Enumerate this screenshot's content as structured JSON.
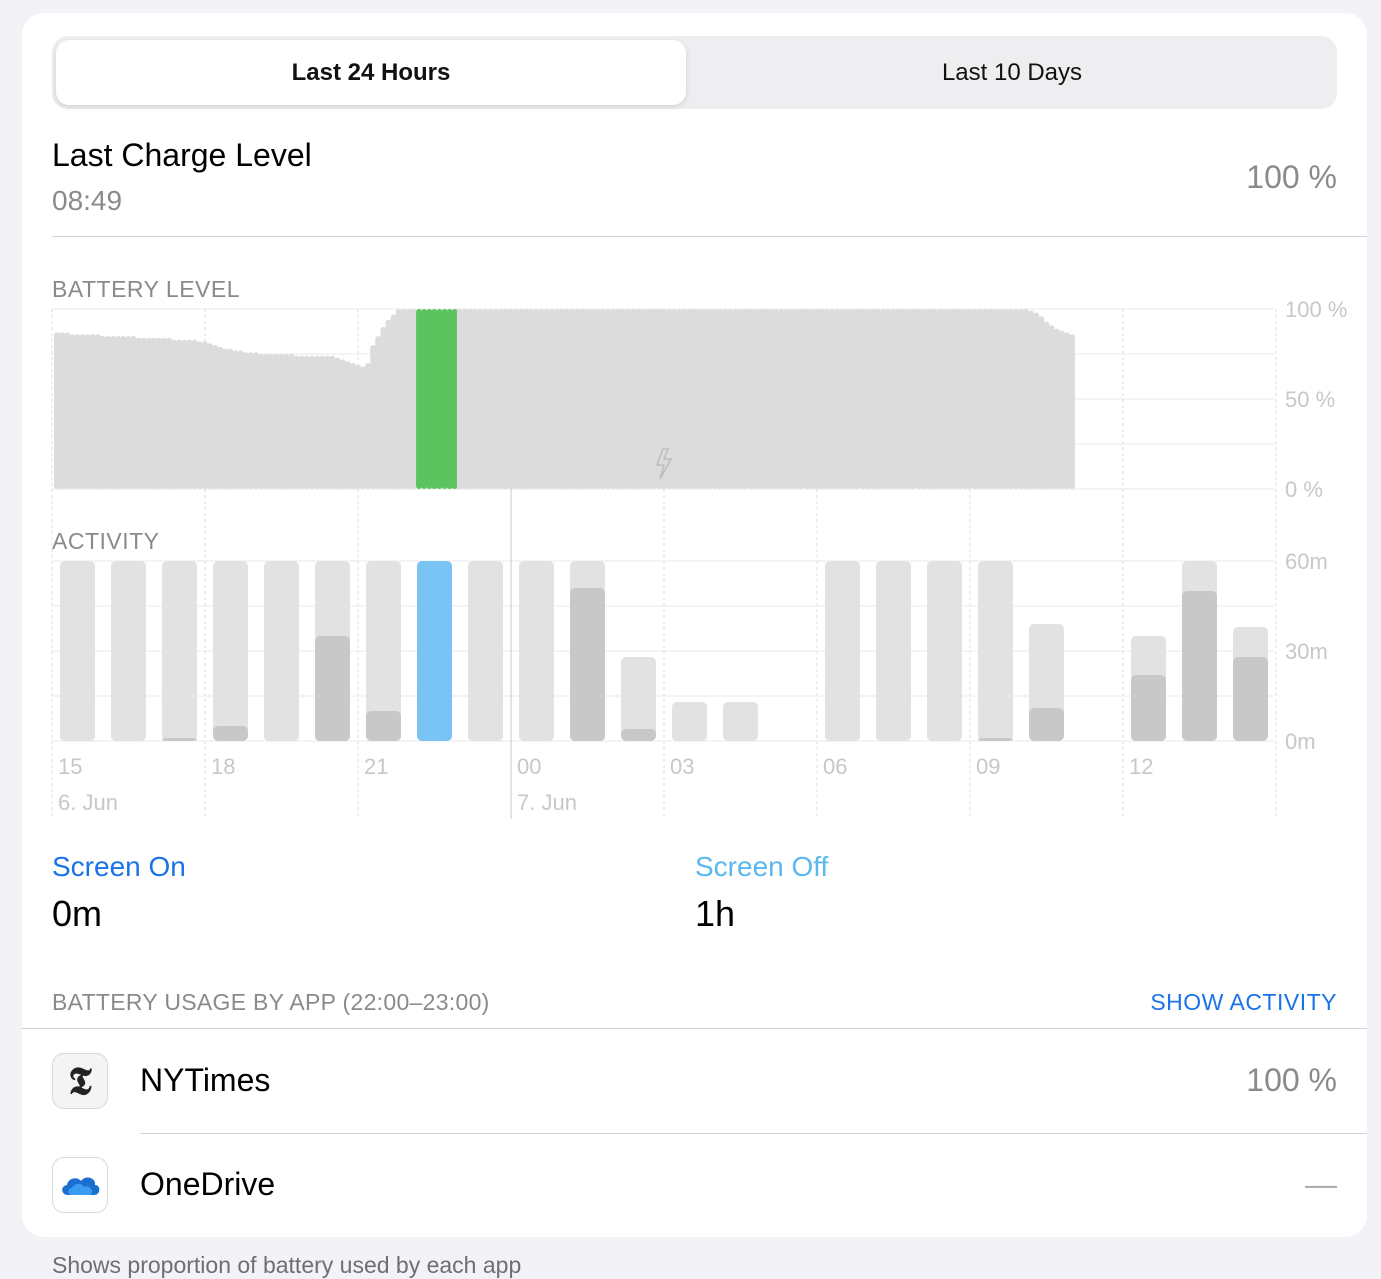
{
  "segmented": {
    "option1": "Last 24 Hours",
    "option2": "Last 10 Days",
    "selected": "Last 24 Hours"
  },
  "last_charge": {
    "title": "Last Charge Level",
    "time": "08:49",
    "value": "100 %"
  },
  "battery_level": {
    "label": "BATTERY LEVEL",
    "y_ticks": [
      "100 %",
      "50 %",
      "0 %"
    ],
    "levels": [
      87,
      87,
      87,
      86,
      86,
      86,
      86,
      86,
      86,
      85,
      85,
      85,
      85,
      85,
      85,
      85,
      84,
      84,
      84,
      84,
      84,
      84,
      84,
      83,
      83,
      83,
      83,
      83,
      82,
      82,
      81,
      80,
      79,
      78,
      78,
      77,
      77,
      76,
      76,
      76,
      75,
      75,
      75,
      75,
      75,
      75,
      75,
      74,
      74,
      74,
      74,
      74,
      74,
      74,
      74,
      73,
      72,
      71,
      70,
      69,
      68,
      70,
      80,
      85,
      90,
      94,
      97,
      100,
      100,
      100,
      100,
      100,
      100,
      100,
      100,
      100,
      100,
      100,
      100,
      100,
      100,
      100,
      100,
      100,
      100,
      100,
      100,
      100,
      100,
      100,
      100,
      100,
      100,
      100,
      100,
      100,
      100,
      100,
      100,
      100,
      100,
      100,
      100,
      100,
      100,
      100,
      100,
      100,
      100,
      100,
      100,
      100,
      100,
      100,
      100,
      100,
      100,
      100,
      100,
      100,
      100,
      100,
      100,
      100,
      100,
      100,
      100,
      100,
      100,
      100,
      100,
      100,
      100,
      100,
      100,
      100,
      100,
      100,
      100,
      100,
      100,
      100,
      100,
      100,
      100,
      100,
      100,
      100,
      100,
      100,
      100,
      100,
      100,
      100,
      100,
      100,
      100,
      100,
      100,
      100,
      100,
      100,
      100,
      100,
      100,
      100,
      100,
      100,
      100,
      100,
      100,
      100,
      100,
      100,
      100,
      100,
      100,
      100,
      100,
      100,
      100,
      100,
      100,
      100,
      100,
      100,
      100,
      100,
      100,
      100,
      100,
      99,
      98,
      96,
      93,
      91,
      89,
      88,
      87,
      86
    ],
    "highlighted_hour": "22",
    "charging_indicator": "bolt-icon",
    "colors": {
      "bar": "#dcdcdc",
      "highlight": "#5cc45e",
      "charging_hatch": "#e8e8e8"
    }
  },
  "activity": {
    "label": "ACTIVITY",
    "y_ticks": [
      "60m",
      "30m",
      "0m"
    ],
    "y_max_minutes": 60,
    "x_ticks": [
      "15",
      "18",
      "21",
      "00",
      "03",
      "06",
      "09",
      "12"
    ],
    "date_labels": [
      "6. Jun",
      "7. Jun"
    ],
    "hours": [
      {
        "total": 60,
        "screen_on": 0
      },
      {
        "total": 60,
        "screen_on": 0
      },
      {
        "total": 60,
        "screen_on": 1
      },
      {
        "total": 60,
        "screen_on": 5
      },
      {
        "total": 60,
        "screen_on": 0
      },
      {
        "total": 60,
        "screen_on": 35
      },
      {
        "total": 60,
        "screen_on": 10
      },
      {
        "total": 60,
        "screen_on": 0,
        "highlight": true
      },
      {
        "total": 60,
        "screen_on": 0
      },
      {
        "total": 60,
        "screen_on": 0
      },
      {
        "total": 60,
        "screen_on": 51
      },
      {
        "total": 28,
        "screen_on": 4
      },
      {
        "total": 13,
        "screen_on": 0
      },
      {
        "total": 13,
        "screen_on": 0
      },
      {
        "total": 0,
        "screen_on": 0
      },
      {
        "total": 60,
        "screen_on": 0
      },
      {
        "total": 60,
        "screen_on": 0
      },
      {
        "total": 60,
        "screen_on": 0
      },
      {
        "total": 60,
        "screen_on": 1
      },
      {
        "total": 39,
        "screen_on": 11
      },
      {
        "total": 0,
        "screen_on": 0
      },
      {
        "total": 35,
        "screen_on": 22
      },
      {
        "total": 60,
        "screen_on": 50
      },
      {
        "total": 38,
        "screen_on": 28
      }
    ],
    "colors": {
      "total": "#e2e2e2",
      "screen_on": "#c8c8c8",
      "highlight": "#79c3f5"
    }
  },
  "summary": {
    "screen_on_label": "Screen On",
    "screen_on_value": "0m",
    "screen_off_label": "Screen Off",
    "screen_off_value": "1h",
    "colors": {
      "screen_on": "#1a73e8",
      "screen_off": "#5ab8f0"
    }
  },
  "usage": {
    "header": "BATTERY USAGE BY APP (22:00–23:00)",
    "show_activity": "SHOW ACTIVITY",
    "apps": [
      {
        "name": "NYTimes",
        "value": "100 %",
        "icon": "nytimes-logo-icon"
      },
      {
        "name": "OneDrive",
        "value": "—",
        "icon": "onedrive-cloud-icon"
      }
    ]
  },
  "footer": "Shows proportion of battery used by each app"
}
